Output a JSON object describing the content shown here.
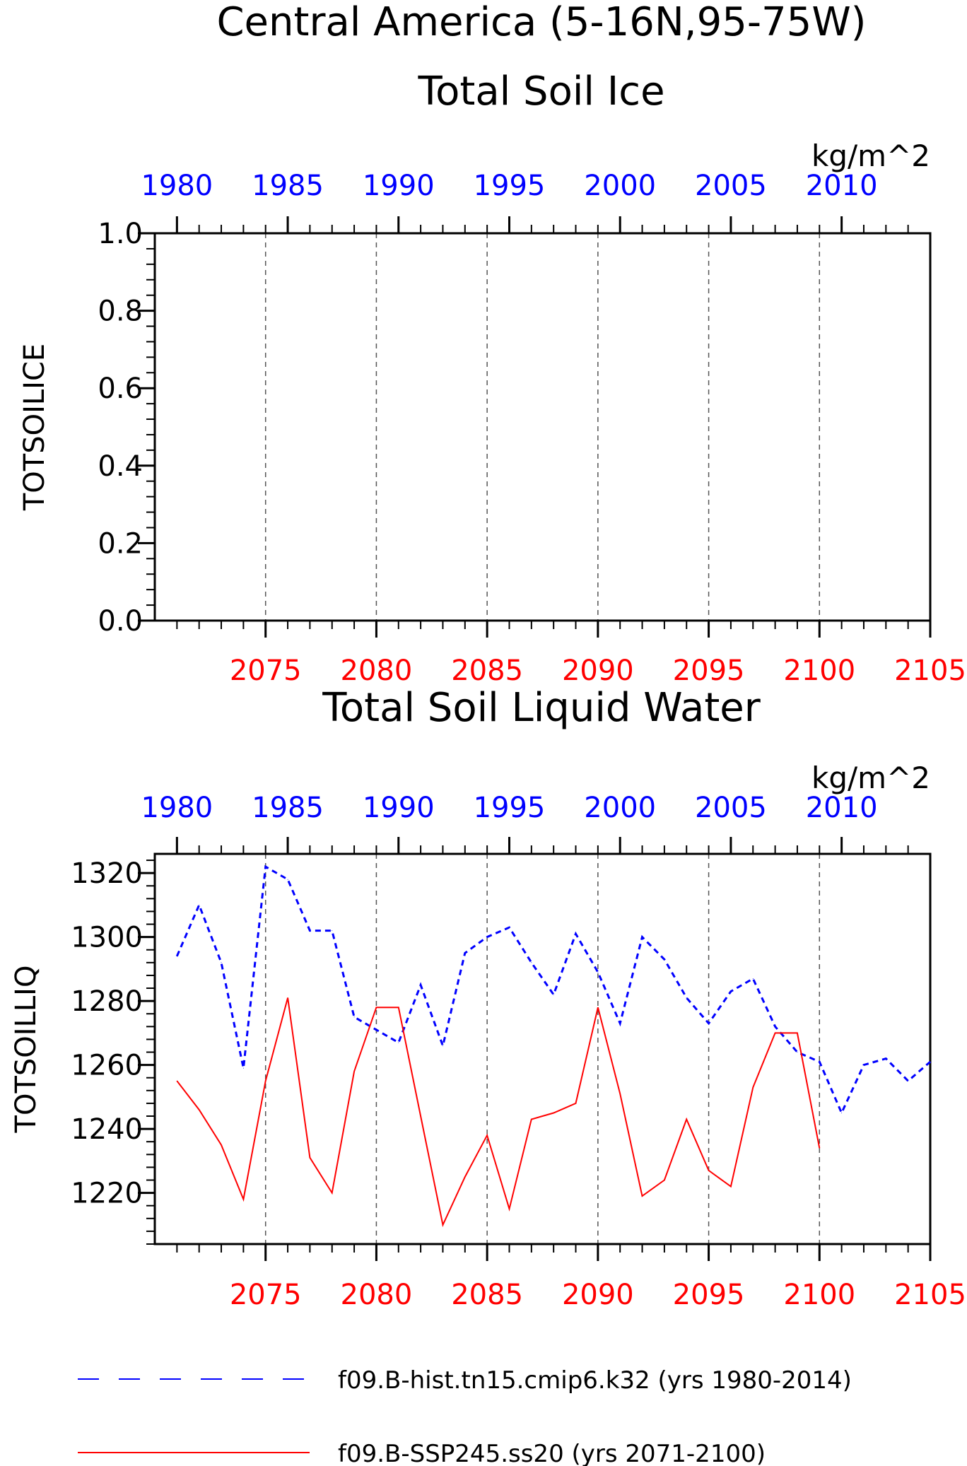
{
  "header": {
    "region": "Central America (5-16N,95-75W)"
  },
  "colors": {
    "hist": "#0000ff",
    "ssp": "#ff0000",
    "frame": "#000000",
    "grid": "#555555"
  },
  "chart_data": [
    {
      "type": "line",
      "title": "Total Soil Ice",
      "units": "kg/m^2",
      "ylabel": "TOTSOILICE",
      "ylim": [
        0,
        1
      ],
      "yticks": [
        "0.0",
        "0.2",
        "0.4",
        "0.6",
        "0.8",
        "1.0"
      ],
      "top_axis": {
        "ticks": [
          "1980",
          "1985",
          "1990",
          "1995",
          "2000",
          "2005",
          "2010"
        ]
      },
      "bottom_axis": {
        "ticks": [
          "2075",
          "2080",
          "2085",
          "2090",
          "2095",
          "2100",
          "2105"
        ]
      },
      "grid": "dashed vertical at 5-year ticks",
      "series": []
    },
    {
      "type": "line",
      "title": "Total Soil Liquid Water",
      "units": "kg/m^2",
      "ylabel": "TOTSOILLIQ",
      "ylim": [
        1204,
        1326
      ],
      "yticks": [
        "1220",
        "1240",
        "1260",
        "1280",
        "1300",
        "1320"
      ],
      "top_axis": {
        "ticks": [
          "1980",
          "1985",
          "1990",
          "1995",
          "2000",
          "2005",
          "2010"
        ]
      },
      "bottom_axis": {
        "ticks": [
          "2075",
          "2080",
          "2085",
          "2090",
          "2095",
          "2100",
          "2105"
        ]
      },
      "grid": "dashed vertical at 5-year ticks",
      "series": [
        {
          "name": "f09.B-hist.tn15.cmip6.k32 (yrs 1980-2014)",
          "axis": "top",
          "style": "dashed",
          "x": [
            1980,
            1981,
            1982,
            1983,
            1984,
            1985,
            1986,
            1987,
            1988,
            1989,
            1990,
            1991,
            1992,
            1993,
            1994,
            1995,
            1996,
            1997,
            1998,
            1999,
            2000,
            2001,
            2002,
            2003,
            2004,
            2005,
            2006,
            2007,
            2008,
            2009,
            2010,
            2011,
            2012,
            2013,
            2014
          ],
          "values": [
            1294,
            1310,
            1292,
            1259,
            1322,
            1318,
            1302,
            1302,
            1275,
            1271,
            1267,
            1285,
            1266,
            1295,
            1300,
            1303,
            1292,
            1282,
            1301,
            1289,
            1273,
            1300,
            1293,
            1281,
            1273,
            1283,
            1287,
            1272,
            1264,
            1261,
            1245,
            1260,
            1262,
            1255,
            1261
          ]
        },
        {
          "name": "f09.B-SSP245.ss20 (yrs 2071-2100)",
          "axis": "bottom",
          "style": "solid",
          "x": [
            2071,
            2072,
            2073,
            2074,
            2075,
            2076,
            2077,
            2078,
            2079,
            2080,
            2081,
            2082,
            2083,
            2084,
            2085,
            2086,
            2087,
            2088,
            2089,
            2090,
            2091,
            2092,
            2093,
            2094,
            2095,
            2096,
            2097,
            2098,
            2099,
            2100
          ],
          "values": [
            1255,
            1246,
            1235,
            1218,
            1255,
            1281,
            1231,
            1220,
            1258,
            1278,
            1278,
            1244,
            1210,
            1225,
            1238,
            1215,
            1243,
            1245,
            1248,
            1278,
            1251,
            1219,
            1224,
            1243,
            1227,
            1222,
            1253,
            1270,
            1270,
            1234
          ]
        }
      ]
    }
  ]
}
